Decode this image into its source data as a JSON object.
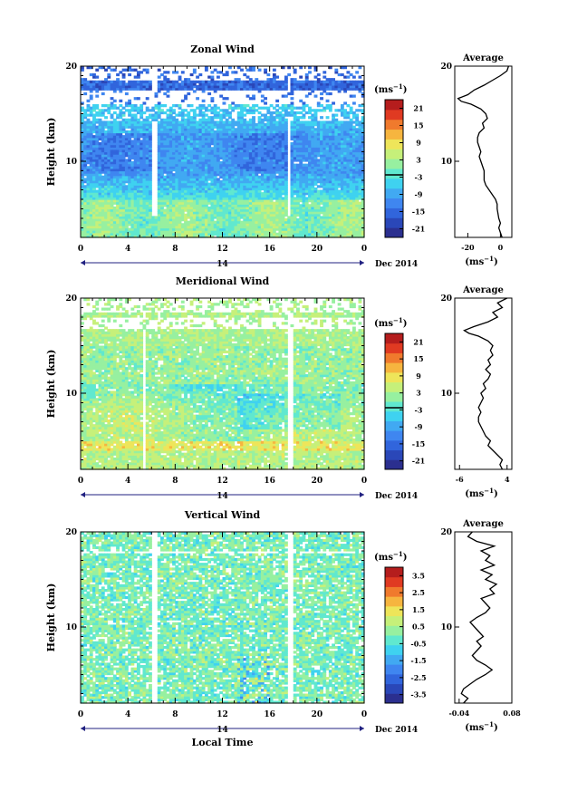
{
  "colorbar_unit_base": "(ms",
  "colorbar_unit_exp": "−1",
  "colorbar_unit_close": ")",
  "average_xunit_base": "(ms",
  "average_xunit_exp": "−1",
  "average_xunit_close": ")",
  "day_label": "14",
  "month_label": "Dec 2014",
  "xlabel_bottom": "Local Time",
  "colorbar_colors": [
    "#2b2f8f",
    "#2a47b8",
    "#3165dc",
    "#3f86f0",
    "#41a9f2",
    "#3fd2f0",
    "#60e8cf",
    "#97f0a0",
    "#c6f07a",
    "#eee55a",
    "#f6b53f",
    "#f07a2d",
    "#e03a22",
    "#b51d1d"
  ],
  "chart_data": [
    {
      "type": "heatmap",
      "title": "Zonal Wind",
      "ylabel": "Height (km)",
      "xlabel": "",
      "xlim": [
        0,
        24
      ],
      "ylim": [
        2,
        20
      ],
      "xticks": [
        "0",
        "4",
        "8",
        "12",
        "16",
        "20",
        "0"
      ],
      "yticks": [
        "10",
        "20"
      ],
      "colorbar_ticks": [
        "21",
        "15",
        "9",
        "3",
        "-3",
        "-9",
        "-15",
        "-21"
      ],
      "colorbar_range": [
        -24,
        24
      ],
      "average": {
        "title": "Average",
        "xlim": [
          -28,
          7
        ],
        "xticks": [
          "-20",
          "0"
        ],
        "yticks": [
          "10",
          "20"
        ],
        "profile": [
          [
            2,
            1
          ],
          [
            2.5,
            0
          ],
          [
            3,
            -1
          ],
          [
            3.5,
            0
          ],
          [
            4,
            -1
          ],
          [
            5,
            -2
          ],
          [
            5.5,
            -2
          ],
          [
            6,
            -3
          ],
          [
            6.5,
            -5
          ],
          [
            7,
            -7
          ],
          [
            7.5,
            -9
          ],
          [
            8,
            -10
          ],
          [
            8.5,
            -10
          ],
          [
            9,
            -10
          ],
          [
            9.5,
            -11
          ],
          [
            10,
            -12
          ],
          [
            10.5,
            -13
          ],
          [
            11,
            -12
          ],
          [
            11.5,
            -13
          ],
          [
            12,
            -14
          ],
          [
            12.5,
            -14
          ],
          [
            13,
            -13
          ],
          [
            13.5,
            -10
          ],
          [
            14,
            -11
          ],
          [
            14.5,
            -8
          ],
          [
            15,
            -9
          ],
          [
            15.5,
            -12
          ],
          [
            16,
            -18
          ],
          [
            16.3,
            -24
          ],
          [
            16.6,
            -26
          ],
          [
            17,
            -20
          ],
          [
            17.5,
            -16
          ],
          [
            18,
            -10
          ],
          [
            18.5,
            -5
          ],
          [
            19,
            0
          ],
          [
            19.5,
            4
          ],
          [
            20,
            5
          ]
        ]
      }
    },
    {
      "type": "heatmap",
      "title": "Meridional Wind",
      "ylabel": "Height (km)",
      "xlabel": "",
      "xlim": [
        0,
        24
      ],
      "ylim": [
        2,
        20
      ],
      "xticks": [
        "0",
        "4",
        "8",
        "12",
        "16",
        "20",
        "0"
      ],
      "yticks": [
        "10",
        "20"
      ],
      "colorbar_ticks": [
        "21",
        "15",
        "9",
        "3",
        "-3",
        "-9",
        "-15",
        "-21"
      ],
      "colorbar_range": [
        -24,
        24
      ],
      "average": {
        "title": "Average",
        "xlim": [
          -7,
          5
        ],
        "xticks": [
          "-6",
          "4"
        ],
        "yticks": [
          "10",
          "20"
        ],
        "profile": [
          [
            2,
            3
          ],
          [
            2.5,
            2.5
          ],
          [
            3,
            3
          ],
          [
            3.5,
            2
          ],
          [
            4,
            1
          ],
          [
            4.5,
            0
          ],
          [
            5,
            0.5
          ],
          [
            5.5,
            -0.5
          ],
          [
            6,
            -1
          ],
          [
            6.5,
            -1.5
          ],
          [
            7,
            -2
          ],
          [
            7.5,
            -2
          ],
          [
            8,
            -1.5
          ],
          [
            8.5,
            -2
          ],
          [
            9,
            -1.5
          ],
          [
            9.5,
            -1
          ],
          [
            10,
            -1.5
          ],
          [
            10.5,
            -0.5
          ],
          [
            11,
            -1
          ],
          [
            11.5,
            0
          ],
          [
            12,
            0.5
          ],
          [
            12.5,
            -0.5
          ],
          [
            13,
            0.5
          ],
          [
            13.5,
            0
          ],
          [
            14,
            1
          ],
          [
            14.5,
            0.5
          ],
          [
            15,
            1
          ],
          [
            15.5,
            0
          ],
          [
            16,
            -2
          ],
          [
            16.3,
            -4
          ],
          [
            16.6,
            -5
          ],
          [
            17,
            -3
          ],
          [
            17.5,
            0
          ],
          [
            18,
            2
          ],
          [
            18.5,
            1
          ],
          [
            19,
            3
          ],
          [
            19.5,
            2
          ],
          [
            20,
            4
          ]
        ]
      }
    },
    {
      "type": "heatmap",
      "title": "Vertical Wind",
      "ylabel": "Height (km)",
      "xlabel": "Local Time",
      "xlim": [
        0,
        24
      ],
      "ylim": [
        2,
        20
      ],
      "xticks": [
        "0",
        "4",
        "8",
        "12",
        "16",
        "20",
        "0"
      ],
      "yticks": [
        "10",
        "20"
      ],
      "colorbar_ticks": [
        "3.5",
        "2.5",
        "1.5",
        "0.5",
        "-0.5",
        "-1.5",
        "-2.5",
        "-3.5"
      ],
      "colorbar_range": [
        -4,
        4
      ],
      "average": {
        "title": "Average",
        "xlim": [
          -0.05,
          0.08
        ],
        "xticks": [
          "-0.04",
          "0.08"
        ],
        "yticks": [
          "10",
          "20"
        ],
        "profile": [
          [
            2,
            -0.03
          ],
          [
            2.5,
            -0.02
          ],
          [
            3,
            -0.035
          ],
          [
            3.5,
            -0.03
          ],
          [
            4,
            -0.015
          ],
          [
            4.5,
            0.0
          ],
          [
            5,
            0.02
          ],
          [
            5.5,
            0.035
          ],
          [
            6,
            0.02
          ],
          [
            6.5,
            0.0
          ],
          [
            7,
            -0.01
          ],
          [
            7.5,
            0.0
          ],
          [
            8,
            0.01
          ],
          [
            8.5,
            0.0
          ],
          [
            9,
            0.015
          ],
          [
            9.5,
            0.005
          ],
          [
            10,
            -0.005
          ],
          [
            10.5,
            -0.015
          ],
          [
            11,
            0.0
          ],
          [
            11.5,
            0.02
          ],
          [
            12,
            0.03
          ],
          [
            12.5,
            0.02
          ],
          [
            13,
            0.01
          ],
          [
            13.5,
            0.04
          ],
          [
            14,
            0.03
          ],
          [
            14.5,
            0.045
          ],
          [
            15,
            0.02
          ],
          [
            15.5,
            0.035
          ],
          [
            16,
            0.01
          ],
          [
            16.5,
            0.04
          ],
          [
            17,
            0.02
          ],
          [
            17.5,
            0.03
          ],
          [
            18,
            0.01
          ],
          [
            18.5,
            0.04
          ],
          [
            19,
            0.0
          ],
          [
            19.5,
            -0.02
          ],
          [
            20,
            -0.01
          ]
        ]
      }
    }
  ]
}
